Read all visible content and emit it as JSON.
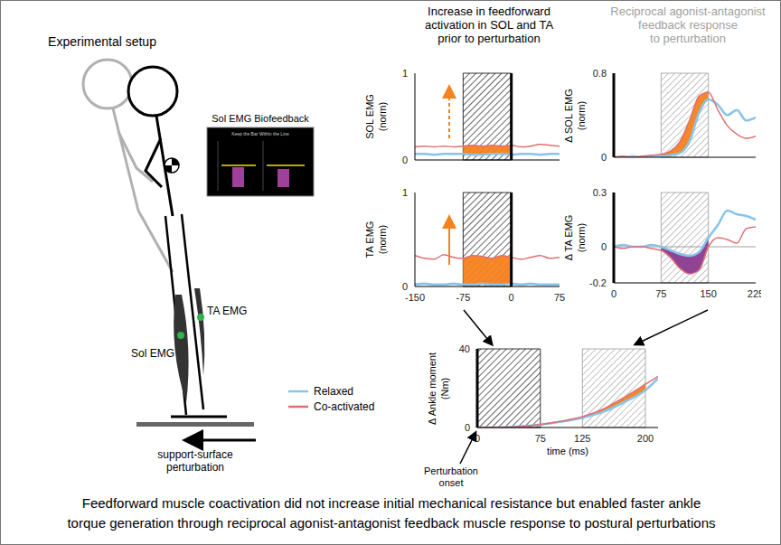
{
  "chart_data": [
    {
      "type": "line",
      "y_label": [
        "SOL EMG",
        "(norm)"
      ],
      "x": [
        -150,
        -135,
        -120,
        -105,
        -90,
        -75,
        -60,
        -45,
        -30,
        -15,
        0,
        15,
        30,
        45,
        60,
        75
      ],
      "xlim": [
        -150,
        75
      ],
      "ylim": [
        0,
        1
      ],
      "yticks": [
        0,
        1
      ],
      "tick_labels": "y",
      "onset": 0,
      "hatched_regions": [
        {
          "x_range": [
            -75,
            0
          ],
          "color": "#000000"
        }
      ],
      "shaded_difference": {
        "x_range": [
          -75,
          0
        ],
        "color": "#f5821f"
      },
      "series": [
        {
          "name": "Relaxed",
          "color": "#88c4ea",
          "values": [
            0.07,
            0.07,
            0.06,
            0.07,
            0.07,
            0.07,
            0.06,
            0.06,
            0.07,
            0.07,
            0.06,
            0.07,
            0.07,
            0.06,
            0.07,
            0.07
          ]
        },
        {
          "name": "Co-activated",
          "color": "#e06f72",
          "values": [
            0.15,
            0.16,
            0.15,
            0.16,
            0.15,
            0.16,
            0.17,
            0.16,
            0.17,
            0.16,
            0.17,
            0.15,
            0.16,
            0.18,
            0.17,
            0.16
          ]
        }
      ]
    },
    {
      "type": "line",
      "y_label": [
        "TA EMG",
        "(norm)"
      ],
      "x": [
        -150,
        -135,
        -120,
        -105,
        -90,
        -75,
        -60,
        -45,
        -30,
        -15,
        0,
        15,
        30,
        45,
        60,
        75
      ],
      "xlim": [
        -150,
        75
      ],
      "xticks": [
        -150,
        -75,
        0,
        75
      ],
      "ylim": [
        0,
        1
      ],
      "yticks": [
        0,
        1
      ],
      "onset": 0,
      "hatched_regions": [
        {
          "x_range": [
            -75,
            0
          ],
          "color": "#000000"
        }
      ],
      "shaded_difference": {
        "x_range": [
          -75,
          0
        ],
        "color": "#f5821f"
      },
      "series": [
        {
          "name": "Relaxed",
          "color": "#88c4ea",
          "values": [
            0.02,
            0.03,
            0.02,
            0.02,
            0.03,
            0.02,
            0.02,
            0.03,
            0.02,
            0.02,
            0.03,
            0.02,
            0.03,
            0.02,
            0.02,
            0.02
          ]
        },
        {
          "name": "Co-activated",
          "color": "#e06f72",
          "values": [
            0.33,
            0.3,
            0.29,
            0.34,
            0.31,
            0.3,
            0.33,
            0.32,
            0.3,
            0.33,
            0.31,
            0.29,
            0.31,
            0.33,
            0.3,
            0.31
          ]
        }
      ]
    },
    {
      "type": "line",
      "y_label": [
        "Δ SOL EMG",
        "(norm)"
      ],
      "x": [
        0,
        15,
        30,
        45,
        60,
        75,
        90,
        105,
        120,
        135,
        150,
        165,
        180,
        195,
        210,
        225
      ],
      "xlim": [
        0,
        225
      ],
      "ylim": [
        0,
        0.8
      ],
      "yticks": [
        0,
        0.8
      ],
      "tick_labels": "y",
      "onset": 0,
      "hatched_regions": [
        {
          "x_range": [
            75,
            150
          ],
          "color": "#999999"
        }
      ],
      "shaded_difference": {
        "x_range": [
          75,
          150
        ],
        "color": "#f5821f"
      },
      "series": [
        {
          "name": "Relaxed",
          "color": "#88c4ea",
          "values": [
            0,
            0,
            0.01,
            0,
            0.01,
            0.01,
            0.02,
            0.04,
            0.15,
            0.42,
            0.55,
            0.5,
            0.4,
            0.45,
            0.35,
            0.38
          ]
        },
        {
          "name": "Co-activated",
          "color": "#e06f72",
          "values": [
            0,
            0.01,
            0,
            0.01,
            0.02,
            0.03,
            0.06,
            0.15,
            0.35,
            0.58,
            0.62,
            0.45,
            0.3,
            0.22,
            0.18,
            0.2
          ]
        }
      ]
    },
    {
      "type": "line",
      "y_label": [
        "Δ TA EMG",
        "(norm)"
      ],
      "x": [
        0,
        15,
        30,
        45,
        60,
        75,
        90,
        105,
        120,
        135,
        150,
        165,
        180,
        195,
        210,
        225
      ],
      "xlim": [
        0,
        225
      ],
      "xticks": [
        0,
        75,
        150,
        225
      ],
      "ylim": [
        -0.2,
        0.3
      ],
      "yticks": [
        -0.2,
        0,
        0.3
      ],
      "onset": 0,
      "baseline": 0,
      "hatched_regions": [
        {
          "x_range": [
            75,
            150
          ],
          "color": "#999999"
        }
      ],
      "shaded_difference": {
        "x_range": [
          75,
          150
        ],
        "color": "#8b3a8f"
      },
      "series": [
        {
          "name": "Relaxed",
          "color": "#88c4ea",
          "values": [
            0,
            0.01,
            0,
            0,
            0.01,
            0,
            -0.02,
            -0.04,
            -0.05,
            -0.03,
            0.05,
            0.12,
            0.2,
            0.18,
            0.17,
            0.15
          ]
        },
        {
          "name": "Co-activated",
          "color": "#e06f72",
          "values": [
            0,
            -0.01,
            0,
            0,
            -0.01,
            -0.02,
            -0.06,
            -0.12,
            -0.15,
            -0.13,
            0,
            0.05,
            0.04,
            0.02,
            0.1,
            0.11
          ]
        }
      ]
    },
    {
      "type": "line",
      "y_label": [
        "Δ Ankle moment",
        "(Nm)"
      ],
      "x_label": "time (ms)",
      "annotation": [
        "Perturbation",
        "onset"
      ],
      "x": [
        0,
        25,
        50,
        75,
        100,
        125,
        150,
        175,
        200,
        215
      ],
      "xlim": [
        0,
        215
      ],
      "xticks": [
        0,
        75,
        125,
        200
      ],
      "ylim": [
        0,
        40
      ],
      "yticks": [
        0,
        40
      ],
      "onset": 0,
      "hatched_regions": [
        {
          "x_range": [
            0,
            75
          ],
          "color": "#000000"
        },
        {
          "x_range": [
            125,
            200
          ],
          "color": "#999999"
        }
      ],
      "shaded_difference": {
        "x_range": [
          125,
          200
        ],
        "color": "#f5821f"
      },
      "series": [
        {
          "name": "Relaxed",
          "color": "#88c4ea",
          "values": [
            0,
            0,
            0.5,
            1.5,
            3,
            5,
            8,
            13,
            19,
            25
          ]
        },
        {
          "name": "Co-activated",
          "color": "#e06f72",
          "values": [
            0,
            0,
            0.5,
            1.5,
            3.2,
            5.5,
            9.5,
            15.5,
            22,
            26
          ]
        }
      ]
    }
  ],
  "headers": {
    "feedforward": [
      "Increase in feedforward",
      "activation in SOL and TA",
      "prior to perturbation"
    ],
    "feedback": [
      "Reciprocal agonist-antagonist",
      "feedback response",
      "to perturbation"
    ]
  },
  "setup": {
    "title": "Experimental setup",
    "monitor_title": "Sol EMG Biofeedback",
    "monitor_text": "Keep the Bar Within the Line",
    "sensor_labels": [
      "Sol EMG",
      "TA EMG"
    ],
    "perturbation_label": [
      "support-surface",
      "perturbation"
    ]
  },
  "caption": [
    "Feedforward muscle coactivation did not increase initial mechanical resistance but enabled faster ankle",
    "torque generation through reciprocal agonist-antagonist feedback muscle response to postural perturbations"
  ]
}
